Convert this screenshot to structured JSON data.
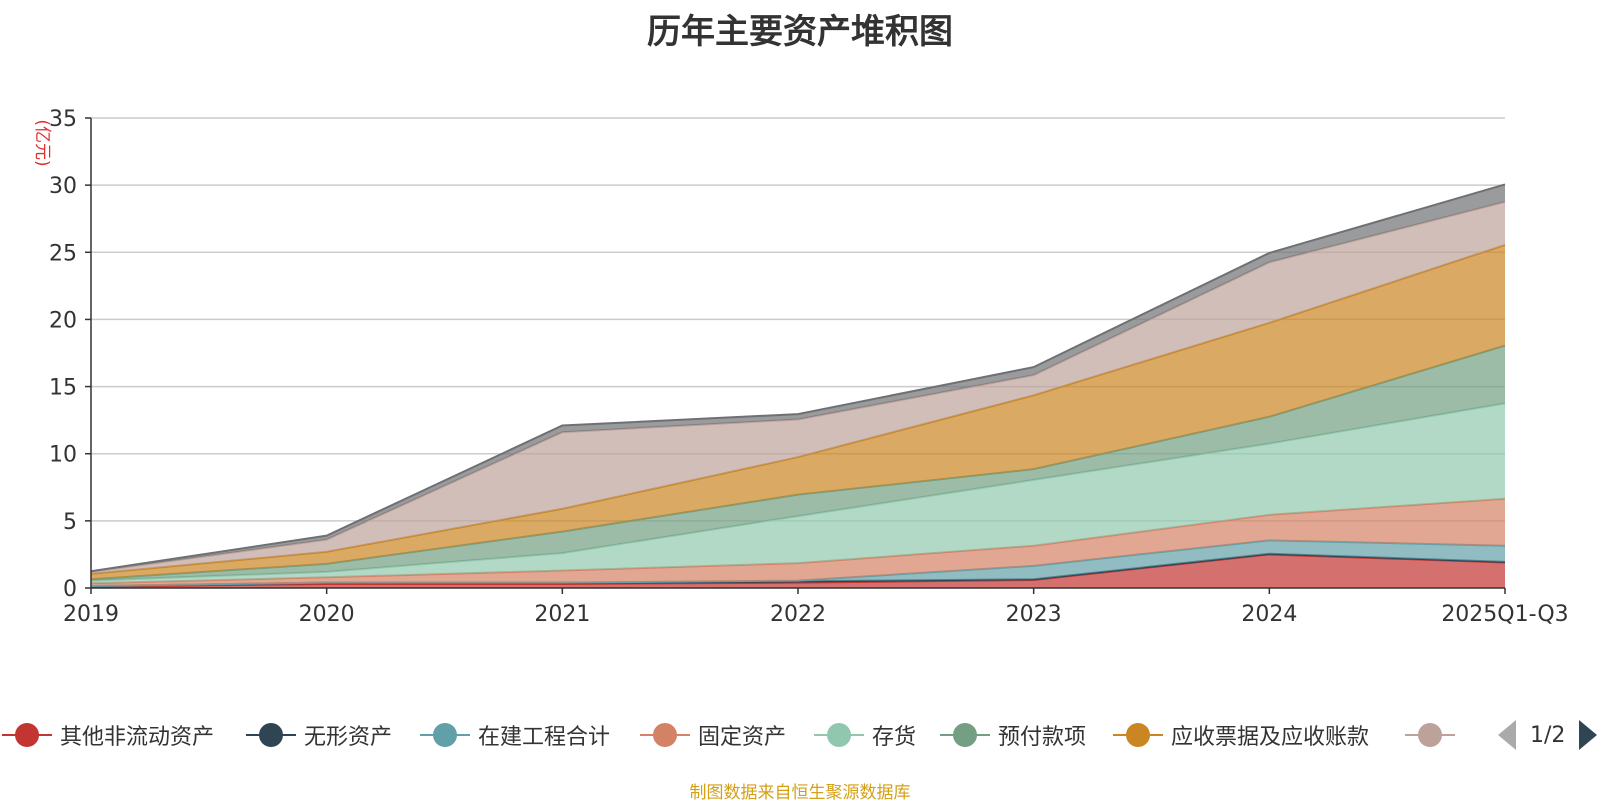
{
  "chart_data": {
    "type": "area",
    "stacked": true,
    "title": "历年主要资产堆积图",
    "ylabel": "(亿元)",
    "xlabel": "",
    "ylim": [
      0,
      35
    ],
    "yticks": [
      0,
      5,
      10,
      15,
      20,
      25,
      30,
      35
    ],
    "grid": true,
    "categories": [
      "2019",
      "2020",
      "2021",
      "2022",
      "2023",
      "2024",
      "2025Q1-Q3"
    ],
    "series": [
      {
        "name": "其他非流动资产",
        "color": "#c23531",
        "values": [
          0.1,
          0.3,
          0.3,
          0.4,
          0.6,
          2.5,
          1.9
        ]
      },
      {
        "name": "无形资产",
        "color": "#2f4554",
        "values": [
          0.05,
          0.1,
          0.1,
          0.1,
          0.05,
          0.05,
          0.05
        ]
      },
      {
        "name": "在建工程合计",
        "color": "#61a0a8",
        "values": [
          0.0,
          0.0,
          0.0,
          0.05,
          1.0,
          1.0,
          1.2
        ]
      },
      {
        "name": "固定资产",
        "color": "#d48265",
        "values": [
          0.2,
          0.4,
          0.9,
          1.3,
          1.5,
          1.9,
          3.5
        ]
      },
      {
        "name": "存货",
        "color": "#91c7ae",
        "values": [
          0.2,
          0.4,
          1.3,
          3.5,
          4.9,
          5.3,
          7.1
        ]
      },
      {
        "name": "预付款项",
        "color": "#749f83",
        "values": [
          0.1,
          0.6,
          1.6,
          1.6,
          0.8,
          2.0,
          4.3
        ]
      },
      {
        "name": "应收票据及应收账款",
        "color": "#ca8622",
        "values": [
          0.4,
          0.9,
          1.7,
          2.8,
          5.5,
          7.0,
          7.5
        ]
      },
      {
        "name": "",
        "color": "#bda29a",
        "values": [
          0.15,
          0.9,
          5.7,
          2.8,
          1.5,
          4.5,
          3.2
        ]
      },
      {
        "name": "",
        "color": "#6e7074",
        "values": [
          0.05,
          0.3,
          0.5,
          0.4,
          0.6,
          0.7,
          1.3
        ]
      }
    ]
  },
  "legend": {
    "pager_text": "1/2"
  },
  "footer": {
    "source": "制图数据来自恒生聚源数据库"
  }
}
